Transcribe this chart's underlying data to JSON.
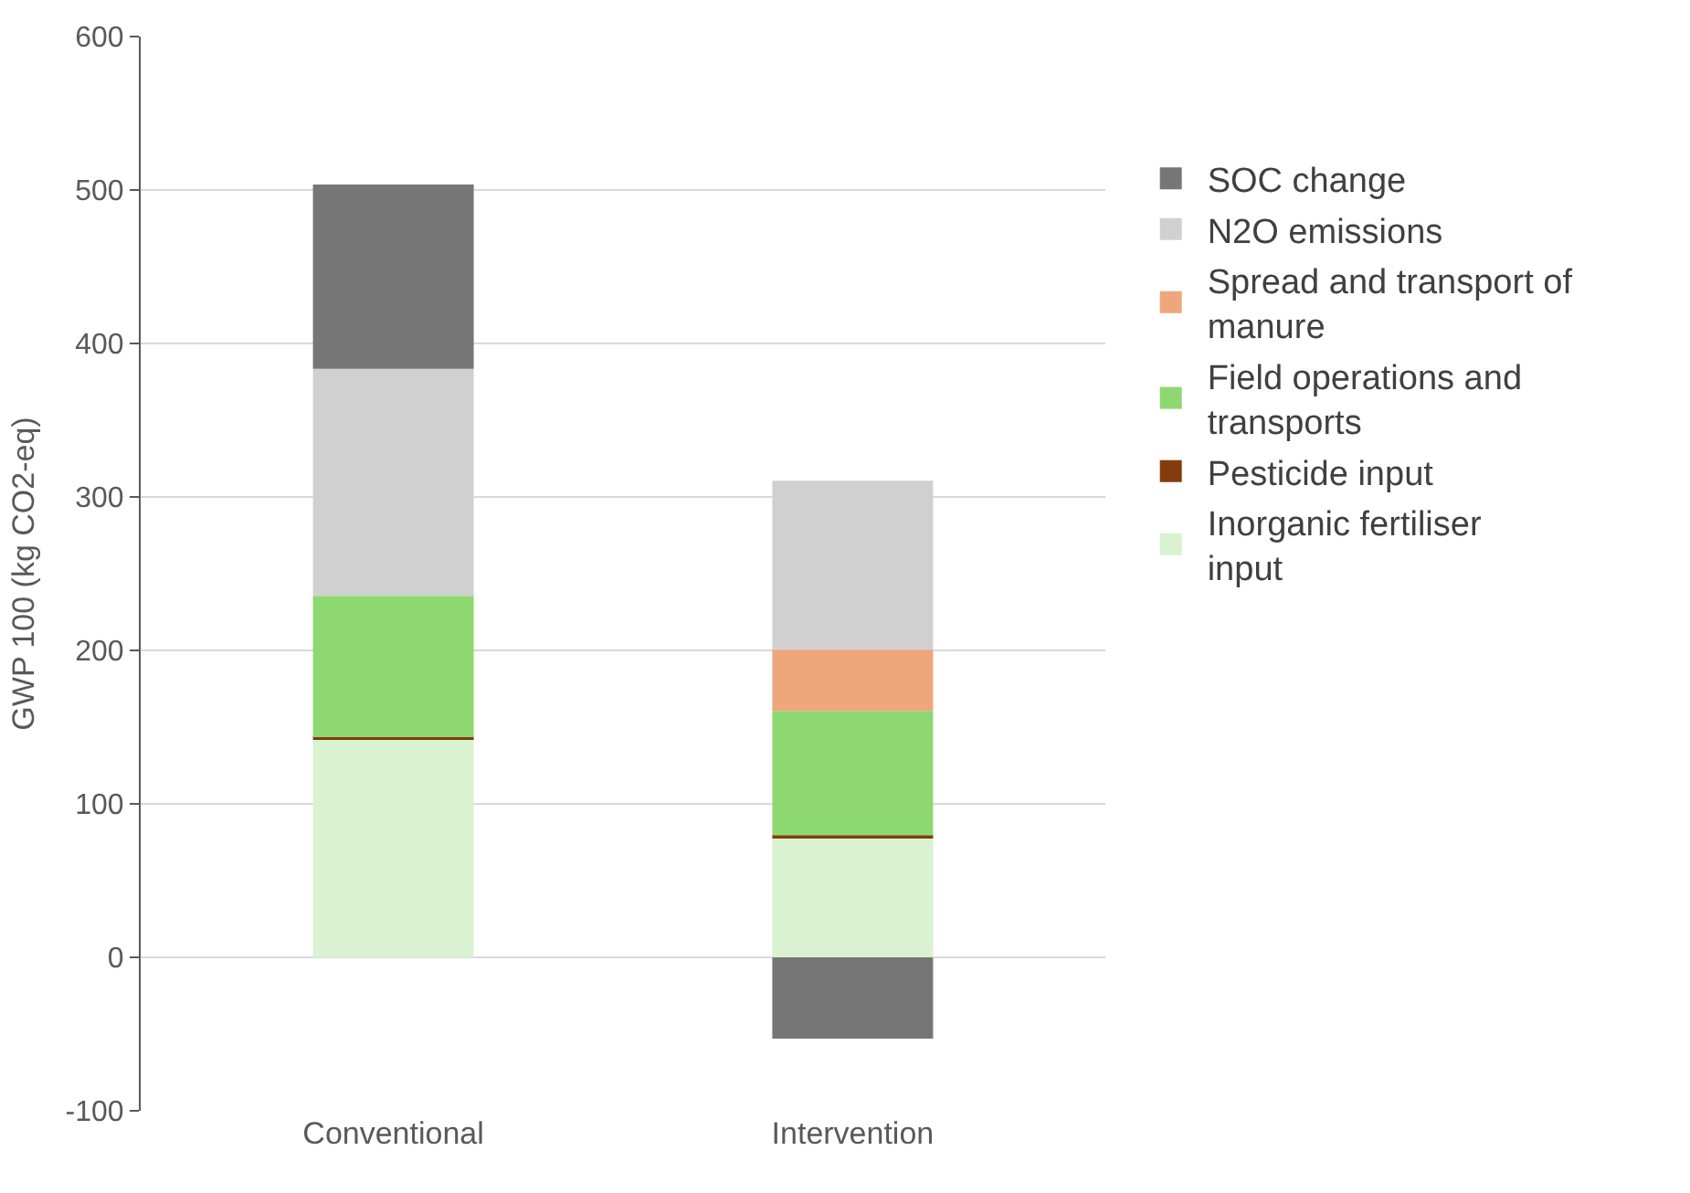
{
  "chart_data": {
    "type": "bar",
    "stacked": true,
    "ylabel": "GWP 100 (kg CO2-eq)",
    "categories": [
      "Conventional",
      "Intervention"
    ],
    "series": [
      {
        "name": "Inorganic fertiliser input",
        "color": "#d9f2d0",
        "values": [
          142,
          78
        ]
      },
      {
        "name": "Pesticide input",
        "color": "#843c0c",
        "values": [
          1.5,
          1.5
        ]
      },
      {
        "name": "Field operations and transports",
        "color": "#8ed872",
        "values": [
          92,
          81
        ]
      },
      {
        "name": "Spread and transport of manure",
        "color": "#f0a67c",
        "values": [
          null,
          40
        ]
      },
      {
        "name": "N2O emissions",
        "color": "#d0d0d0",
        "values": [
          148,
          110
        ]
      },
      {
        "name": "SOC change",
        "color": "#767676",
        "values": [
          120,
          -53
        ]
      }
    ],
    "ylim": [
      -100,
      600
    ],
    "yticks": [
      -100,
      0,
      100,
      200,
      300,
      400,
      500,
      600
    ],
    "grid": "y",
    "legend": "right"
  }
}
